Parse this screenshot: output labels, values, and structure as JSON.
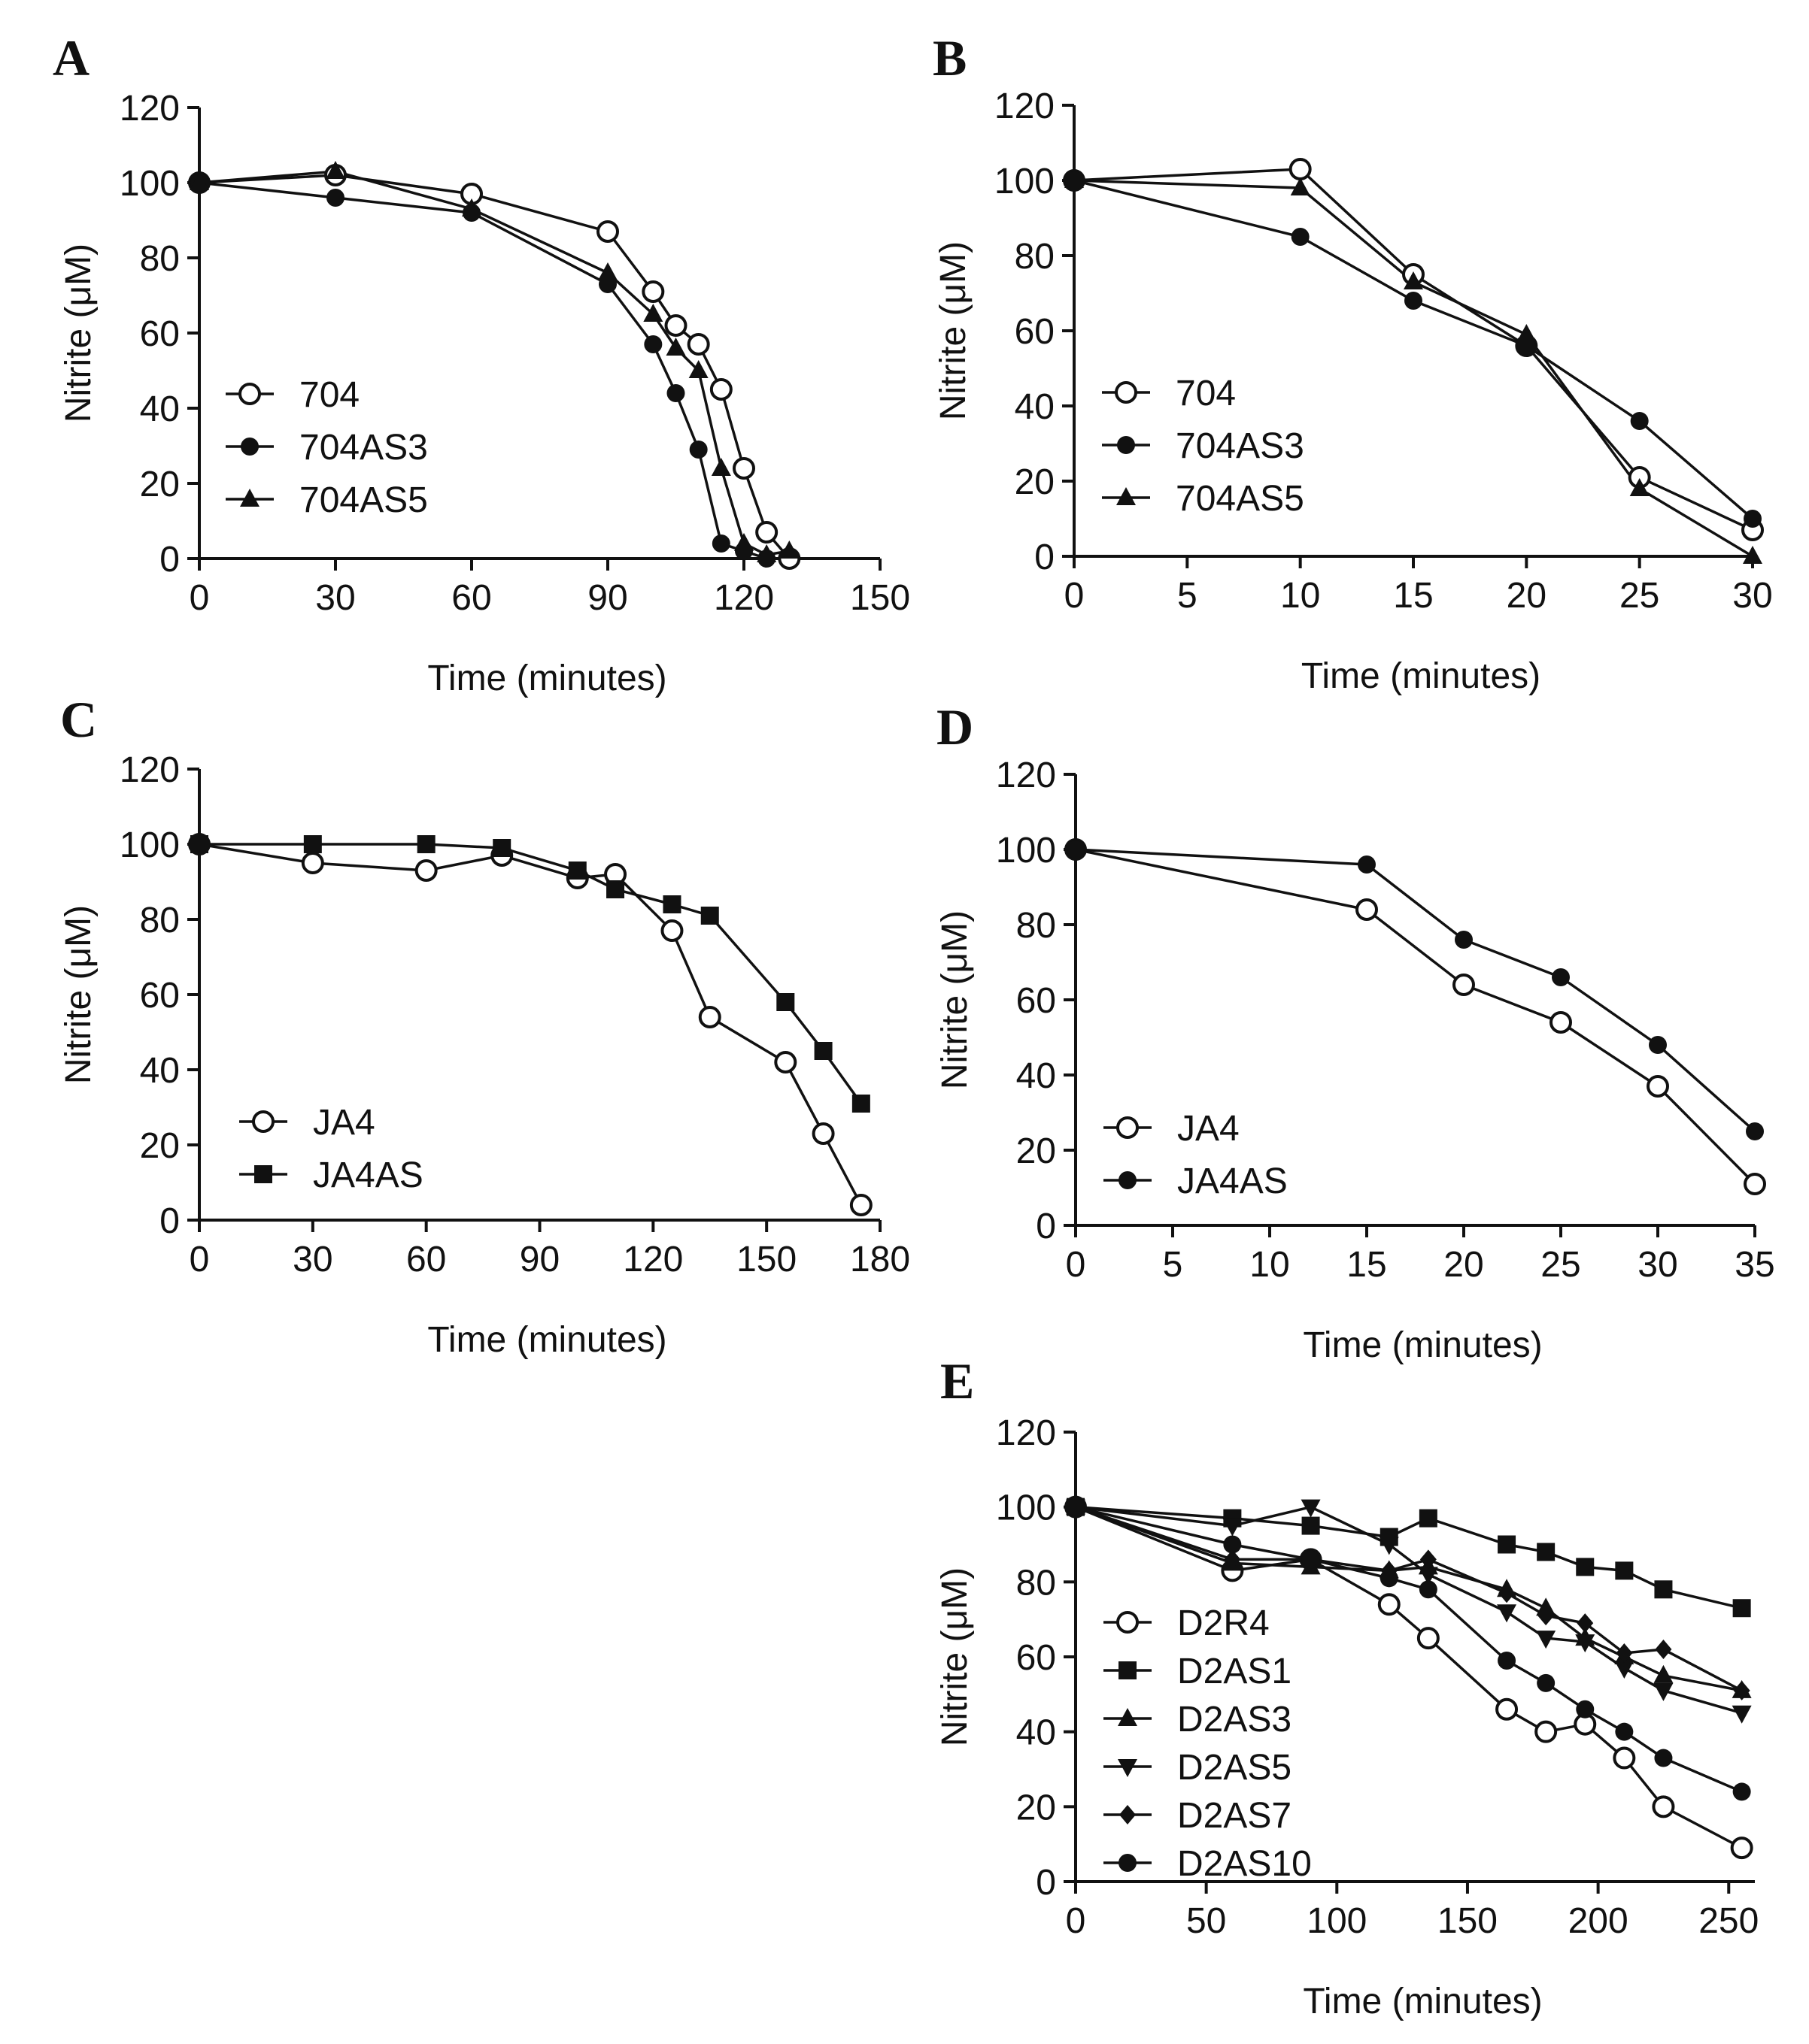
{
  "chart_data": [
    {
      "panel": "A",
      "type": "line",
      "xlabel": "Time (minutes)",
      "ylabel": "Nitrite (μM)",
      "xlim": [
        0,
        150
      ],
      "ylim": [
        0,
        120
      ],
      "xticks": [
        0,
        30,
        60,
        90,
        120,
        150
      ],
      "yticks": [
        0,
        20,
        40,
        60,
        80,
        100,
        120
      ],
      "legend_position": "bottom-left",
      "series": [
        {
          "name": "704",
          "marker": "open-circle",
          "x": [
            0,
            30,
            60,
            90,
            100,
            105,
            110,
            115,
            120,
            125,
            130
          ],
          "y": [
            100,
            102,
            97,
            87,
            71,
            62,
            57,
            45,
            24,
            7,
            0
          ]
        },
        {
          "name": "704AS3",
          "marker": "filled-circle",
          "x": [
            0,
            30,
            60,
            90,
            100,
            105,
            110,
            115,
            120,
            125
          ],
          "y": [
            100,
            96,
            92,
            73,
            57,
            44,
            29,
            4,
            2,
            0
          ]
        },
        {
          "name": "704AS5",
          "marker": "filled-triangle",
          "x": [
            0,
            30,
            60,
            90,
            100,
            105,
            110,
            115,
            120,
            125,
            130
          ],
          "y": [
            100,
            103,
            93,
            76,
            65,
            56,
            50,
            24,
            4,
            1,
            2
          ]
        }
      ]
    },
    {
      "panel": "B",
      "type": "line",
      "xlabel": "Time (minutes)",
      "ylabel": "Nitrite (μM)",
      "xlim": [
        0,
        30
      ],
      "ylim": [
        0,
        120
      ],
      "xticks": [
        0,
        5,
        10,
        15,
        20,
        25,
        30
      ],
      "yticks": [
        0,
        20,
        40,
        60,
        80,
        100,
        120
      ],
      "legend_position": "bottom-left",
      "series": [
        {
          "name": "704",
          "marker": "open-circle",
          "x": [
            0,
            10,
            15,
            20,
            25,
            30
          ],
          "y": [
            100,
            103,
            75,
            56,
            21,
            7
          ]
        },
        {
          "name": "704AS3",
          "marker": "filled-circle",
          "x": [
            0,
            10,
            15,
            20,
            25,
            30
          ],
          "y": [
            100,
            85,
            68,
            56,
            36,
            10
          ]
        },
        {
          "name": "704AS5",
          "marker": "filled-triangle",
          "x": [
            0,
            10,
            15,
            20,
            25,
            30
          ],
          "y": [
            100,
            98,
            73,
            59,
            18,
            0
          ]
        }
      ]
    },
    {
      "panel": "C",
      "type": "line",
      "xlabel": "Time (minutes)",
      "ylabel": "Nitrite (μM)",
      "xlim": [
        0,
        180
      ],
      "ylim": [
        0,
        120
      ],
      "xticks": [
        0,
        30,
        60,
        90,
        120,
        150,
        180
      ],
      "yticks": [
        0,
        20,
        40,
        60,
        80,
        100,
        120
      ],
      "legend_position": "bottom-left",
      "series": [
        {
          "name": "JA4",
          "marker": "open-circle",
          "x": [
            0,
            30,
            60,
            80,
            100,
            110,
            125,
            135,
            155,
            165,
            175
          ],
          "y": [
            100,
            95,
            93,
            97,
            91,
            92,
            77,
            54,
            42,
            23,
            4
          ]
        },
        {
          "name": "JA4AS",
          "marker": "filled-square",
          "x": [
            0,
            30,
            60,
            80,
            100,
            110,
            125,
            135,
            155,
            165,
            175
          ],
          "y": [
            100,
            100,
            100,
            99,
            93,
            88,
            84,
            81,
            58,
            45,
            31
          ]
        }
      ]
    },
    {
      "panel": "D",
      "type": "line",
      "xlabel": "Time (minutes)",
      "ylabel": "Nitrite (μM)",
      "xlim": [
        0,
        35
      ],
      "ylim": [
        0,
        120
      ],
      "xticks": [
        0,
        5,
        10,
        15,
        20,
        25,
        30,
        35
      ],
      "yticks": [
        0,
        20,
        40,
        60,
        80,
        100,
        120
      ],
      "legend_position": "bottom-left",
      "series": [
        {
          "name": "JA4",
          "marker": "open-circle",
          "x": [
            0,
            15,
            20,
            25,
            30,
            35
          ],
          "y": [
            100,
            84,
            64,
            54,
            37,
            11
          ]
        },
        {
          "name": "JA4AS",
          "marker": "filled-circle",
          "x": [
            0,
            15,
            20,
            25,
            30,
            35
          ],
          "y": [
            100,
            96,
            76,
            66,
            48,
            25
          ]
        }
      ]
    },
    {
      "panel": "E",
      "type": "line",
      "xlabel": "Time (minutes)",
      "ylabel": "Nitrite (μM)",
      "xlim": [
        0,
        260
      ],
      "ylim": [
        0,
        120
      ],
      "xticks": [
        0,
        50,
        100,
        150,
        200,
        250
      ],
      "yticks": [
        0,
        20,
        40,
        60,
        80,
        100,
        120
      ],
      "legend_position": "bottom-left",
      "series": [
        {
          "name": "D2R4",
          "marker": "open-circle",
          "x": [
            0,
            60,
            90,
            120,
            135,
            165,
            180,
            195,
            210,
            225,
            255
          ],
          "y": [
            100,
            83,
            86,
            74,
            65,
            46,
            40,
            42,
            33,
            20,
            9
          ]
        },
        {
          "name": "D2AS1",
          "marker": "filled-square",
          "x": [
            0,
            60,
            90,
            120,
            135,
            165,
            180,
            195,
            210,
            225,
            255
          ],
          "y": [
            100,
            97,
            95,
            92,
            97,
            90,
            88,
            84,
            83,
            78,
            73
          ]
        },
        {
          "name": "D2AS3",
          "marker": "filled-triangle",
          "x": [
            0,
            60,
            90,
            120,
            135,
            165,
            180,
            195,
            210,
            225,
            255
          ],
          "y": [
            100,
            85,
            84,
            83,
            84,
            78,
            73,
            65,
            60,
            55,
            51
          ]
        },
        {
          "name": "D2AS5",
          "marker": "filled-triangle-down",
          "x": [
            0,
            60,
            90,
            120,
            135,
            165,
            180,
            195,
            210,
            225,
            255
          ],
          "y": [
            100,
            95,
            100,
            90,
            82,
            72,
            65,
            64,
            57,
            51,
            45
          ]
        },
        {
          "name": "D2AS7",
          "marker": "filled-diamond",
          "x": [
            0,
            60,
            90,
            120,
            135,
            165,
            180,
            195,
            210,
            225,
            255
          ],
          "y": [
            100,
            86,
            86,
            83,
            86,
            77,
            71,
            69,
            61,
            62,
            51
          ]
        },
        {
          "name": "D2AS10",
          "marker": "filled-circle",
          "x": [
            0,
            60,
            90,
            120,
            135,
            165,
            180,
            195,
            210,
            225,
            255
          ],
          "y": [
            100,
            90,
            86,
            81,
            78,
            59,
            53,
            46,
            40,
            33,
            24
          ]
        }
      ]
    }
  ]
}
